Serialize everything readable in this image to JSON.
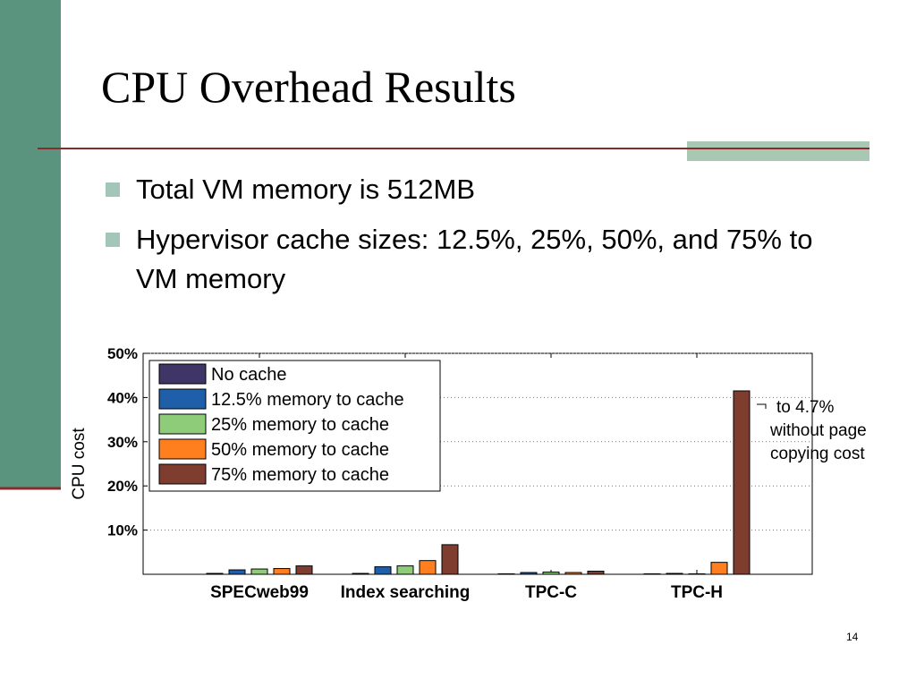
{
  "slide": {
    "title": "CPU Overhead Results",
    "bullets": [
      "Total VM memory is 512MB",
      "Hypervisor cache sizes: 12.5%, 25%, 50%, and 75% to VM memory"
    ],
    "page_number": "14"
  },
  "chart_data": {
    "type": "bar",
    "y_label": "CPU cost",
    "categories": [
      "SPECweb99",
      "Index searching",
      "TPC-C",
      "TPC-H"
    ],
    "series": [
      {
        "name": "No cache",
        "color": "#3f3566",
        "values": [
          0.2,
          0.2,
          0.1,
          0.1
        ]
      },
      {
        "name": "12.5% memory to cache",
        "color": "#1f5ea8",
        "values": [
          1.0,
          1.7,
          0.4,
          0.2
        ]
      },
      {
        "name": "25% memory to cache",
        "color": "#8fcc7a",
        "values": [
          1.2,
          1.9,
          0.5,
          0.1
        ]
      },
      {
        "name": "50% memory to cache",
        "color": "#ff7f1f",
        "values": [
          1.3,
          3.1,
          0.4,
          2.7
        ]
      },
      {
        "name": "75% memory to cache",
        "color": "#7f3d2f",
        "values": [
          1.9,
          6.7,
          0.7,
          41.5
        ]
      }
    ],
    "ylim": [
      0,
      50
    ],
    "yticks": [
      {
        "value": 10,
        "label": "10%"
      },
      {
        "value": 20,
        "label": "20%"
      },
      {
        "value": 30,
        "label": "30%"
      },
      {
        "value": 40,
        "label": "40%"
      },
      {
        "value": 50,
        "label": "50%"
      }
    ],
    "grid": true,
    "legend": "upper left",
    "annotation": [
      "to 4.7%",
      "without page",
      "copying cost"
    ]
  }
}
